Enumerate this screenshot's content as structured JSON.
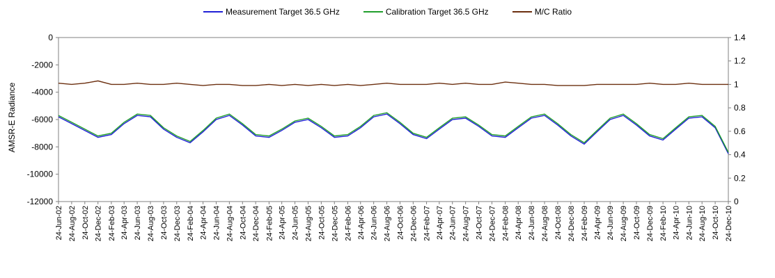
{
  "chart_data": {
    "type": "line",
    "title": "",
    "xlabel": "",
    "ylabel": "AMSR-E Radiance",
    "y2label": "",
    "ylim": [
      -12000,
      0
    ],
    "y2lim": [
      0,
      1.4
    ],
    "y_ticks": [
      "0",
      "-2000",
      "-4000",
      "-6000",
      "-8000",
      "-10000",
      "-12000"
    ],
    "y2_ticks": [
      "1.4",
      "1.2",
      "1",
      "0.8",
      "0.6",
      "0.4",
      "0.2",
      "0"
    ],
    "x_range": [
      "2002-06-24",
      "2010-12-24"
    ],
    "x_tick_labels": [
      "24-Jun-02",
      "24-Aug-02",
      "24-Oct-02",
      "24-Dec-02",
      "24-Feb-03",
      "24-Apr-03",
      "24-Jun-03",
      "24-Aug-03",
      "24-Oct-03",
      "24-Dec-03",
      "24-Feb-04",
      "24-Apr-04",
      "24-Jun-04",
      "24-Aug-04",
      "24-Oct-04",
      "24-Dec-04",
      "24-Feb-05",
      "24-Apr-05",
      "24-Jun-05",
      "24-Aug-05",
      "24-Oct-05",
      "24-Dec-05",
      "24-Feb-06",
      "24-Apr-06",
      "24-Jun-06",
      "24-Aug-06",
      "24-Oct-06",
      "24-Dec-06",
      "24-Feb-07",
      "24-Apr-07",
      "24-Jun-07",
      "24-Aug-07",
      "24-Oct-07",
      "24-Dec-07",
      "24-Feb-08",
      "24-Apr-08",
      "24-Jun-08",
      "24-Aug-08",
      "24-Oct-08",
      "24-Dec-08",
      "24-Feb-09",
      "24-Apr-09",
      "24-Jun-09",
      "24-Aug-09",
      "24-Oct-09",
      "24-Dec-09",
      "24-Feb-10",
      "24-Apr-10",
      "24-Jun-10",
      "24-Aug-10",
      "24-Oct-10",
      "24-Dec-10"
    ],
    "legend_position": "top",
    "grid": false,
    "series": [
      {
        "name": "Measurement Target 36.5 GHz",
        "axis": "left",
        "color": "#1f1fd6",
        "x": [
          "2002-06-24",
          "2002-08-24",
          "2002-10-24",
          "2002-12-24",
          "2003-02-24",
          "2003-04-24",
          "2003-06-24",
          "2003-08-24",
          "2003-10-24",
          "2003-12-24",
          "2004-02-24",
          "2004-04-24",
          "2004-06-24",
          "2004-08-24",
          "2004-10-24",
          "2004-12-24",
          "2005-02-24",
          "2005-04-24",
          "2005-06-24",
          "2005-08-24",
          "2005-10-24",
          "2005-12-24",
          "2006-02-24",
          "2006-04-24",
          "2006-06-24",
          "2006-08-24",
          "2006-10-24",
          "2006-12-24",
          "2007-02-24",
          "2007-04-24",
          "2007-06-24",
          "2007-08-24",
          "2007-10-24",
          "2007-12-24",
          "2008-02-24",
          "2008-04-24",
          "2008-06-24",
          "2008-08-24",
          "2008-10-24",
          "2008-12-24",
          "2009-02-24",
          "2009-04-24",
          "2009-06-24",
          "2009-08-24",
          "2009-10-24",
          "2009-12-24",
          "2010-02-24",
          "2010-04-24",
          "2010-06-24",
          "2010-08-24",
          "2010-10-24",
          "2010-12-24"
        ],
        "y": [
          -5800,
          -6300,
          -6800,
          -7300,
          -7100,
          -6300,
          -5700,
          -5800,
          -6700,
          -7300,
          -7700,
          -6900,
          -6000,
          -5700,
          -6400,
          -7200,
          -7300,
          -6800,
          -6200,
          -6000,
          -6600,
          -7300,
          -7200,
          -6600,
          -5800,
          -5600,
          -6300,
          -7100,
          -7400,
          -6700,
          -6000,
          -5900,
          -6500,
          -7200,
          -7300,
          -6600,
          -5900,
          -5700,
          -6400,
          -7200,
          -7800,
          -6900,
          -6000,
          -5700,
          -6400,
          -7200,
          -7500,
          -6700,
          -5900,
          -5800,
          -6600,
          -8500
        ]
      },
      {
        "name": "Calibration Target 36.5 GHz",
        "axis": "left",
        "color": "#1f9e2b",
        "x": [
          "2002-06-24",
          "2002-08-24",
          "2002-10-24",
          "2002-12-24",
          "2003-02-24",
          "2003-04-24",
          "2003-06-24",
          "2003-08-24",
          "2003-10-24",
          "2003-12-24",
          "2004-02-24",
          "2004-04-24",
          "2004-06-24",
          "2004-08-24",
          "2004-10-24",
          "2004-12-24",
          "2005-02-24",
          "2005-04-24",
          "2005-06-24",
          "2005-08-24",
          "2005-10-24",
          "2005-12-24",
          "2006-02-24",
          "2006-04-24",
          "2006-06-24",
          "2006-08-24",
          "2006-10-24",
          "2006-12-24",
          "2007-02-24",
          "2007-04-24",
          "2007-06-24",
          "2007-08-24",
          "2007-10-24",
          "2007-12-24",
          "2008-02-24",
          "2008-04-24",
          "2008-06-24",
          "2008-08-24",
          "2008-10-24",
          "2008-12-24",
          "2009-02-24",
          "2009-04-24",
          "2009-06-24",
          "2009-08-24",
          "2009-10-24",
          "2009-12-24",
          "2010-02-24",
          "2010-04-24",
          "2010-06-24",
          "2010-08-24",
          "2010-10-24",
          "2010-12-24"
        ],
        "y": [
          -5700,
          -6200,
          -6700,
          -7200,
          -7000,
          -6200,
          -5600,
          -5700,
          -6600,
          -7200,
          -7600,
          -6800,
          -5900,
          -5600,
          -6300,
          -7100,
          -7200,
          -6700,
          -6100,
          -5900,
          -6500,
          -7200,
          -7100,
          -6500,
          -5700,
          -5500,
          -6200,
          -7000,
          -7300,
          -6600,
          -5900,
          -5800,
          -6400,
          -7100,
          -7200,
          -6500,
          -5800,
          -5600,
          -6300,
          -7100,
          -7700,
          -6800,
          -5900,
          -5600,
          -6300,
          -7100,
          -7400,
          -6600,
          -5800,
          -5700,
          -6500,
          -8400
        ]
      },
      {
        "name": "M/C Ratio",
        "axis": "right",
        "color": "#6b2e0e",
        "x": [
          "2002-06-24",
          "2002-08-24",
          "2002-10-24",
          "2002-12-24",
          "2003-02-24",
          "2003-04-24",
          "2003-06-24",
          "2003-08-24",
          "2003-10-24",
          "2003-12-24",
          "2004-02-24",
          "2004-04-24",
          "2004-06-24",
          "2004-08-24",
          "2004-10-24",
          "2004-12-24",
          "2005-02-24",
          "2005-04-24",
          "2005-06-24",
          "2005-08-24",
          "2005-10-24",
          "2005-12-24",
          "2006-02-24",
          "2006-04-24",
          "2006-06-24",
          "2006-08-24",
          "2006-10-24",
          "2006-12-24",
          "2007-02-24",
          "2007-04-24",
          "2007-06-24",
          "2007-08-24",
          "2007-10-24",
          "2007-12-24",
          "2008-02-24",
          "2008-04-24",
          "2008-06-24",
          "2008-08-24",
          "2008-10-24",
          "2008-12-24",
          "2009-02-24",
          "2009-04-24",
          "2009-06-24",
          "2009-08-24",
          "2009-10-24",
          "2009-12-24",
          "2010-02-24",
          "2010-04-24",
          "2010-06-24",
          "2010-08-24",
          "2010-10-24",
          "2010-12-24"
        ],
        "y": [
          1.01,
          1.0,
          1.01,
          1.03,
          1.0,
          1.0,
          1.01,
          1.0,
          1.0,
          1.01,
          1.0,
          0.99,
          1.0,
          1.0,
          0.99,
          0.99,
          1.0,
          0.99,
          1.0,
          0.99,
          1.0,
          0.99,
          1.0,
          0.99,
          1.0,
          1.01,
          1.0,
          1.0,
          1.0,
          1.01,
          1.0,
          1.01,
          1.0,
          1.0,
          1.02,
          1.01,
          1.0,
          1.0,
          0.99,
          0.99,
          0.99,
          1.0,
          1.0,
          1.0,
          1.0,
          1.01,
          1.0,
          1.0,
          1.01,
          1.0,
          1.0,
          1.0
        ]
      }
    ]
  }
}
